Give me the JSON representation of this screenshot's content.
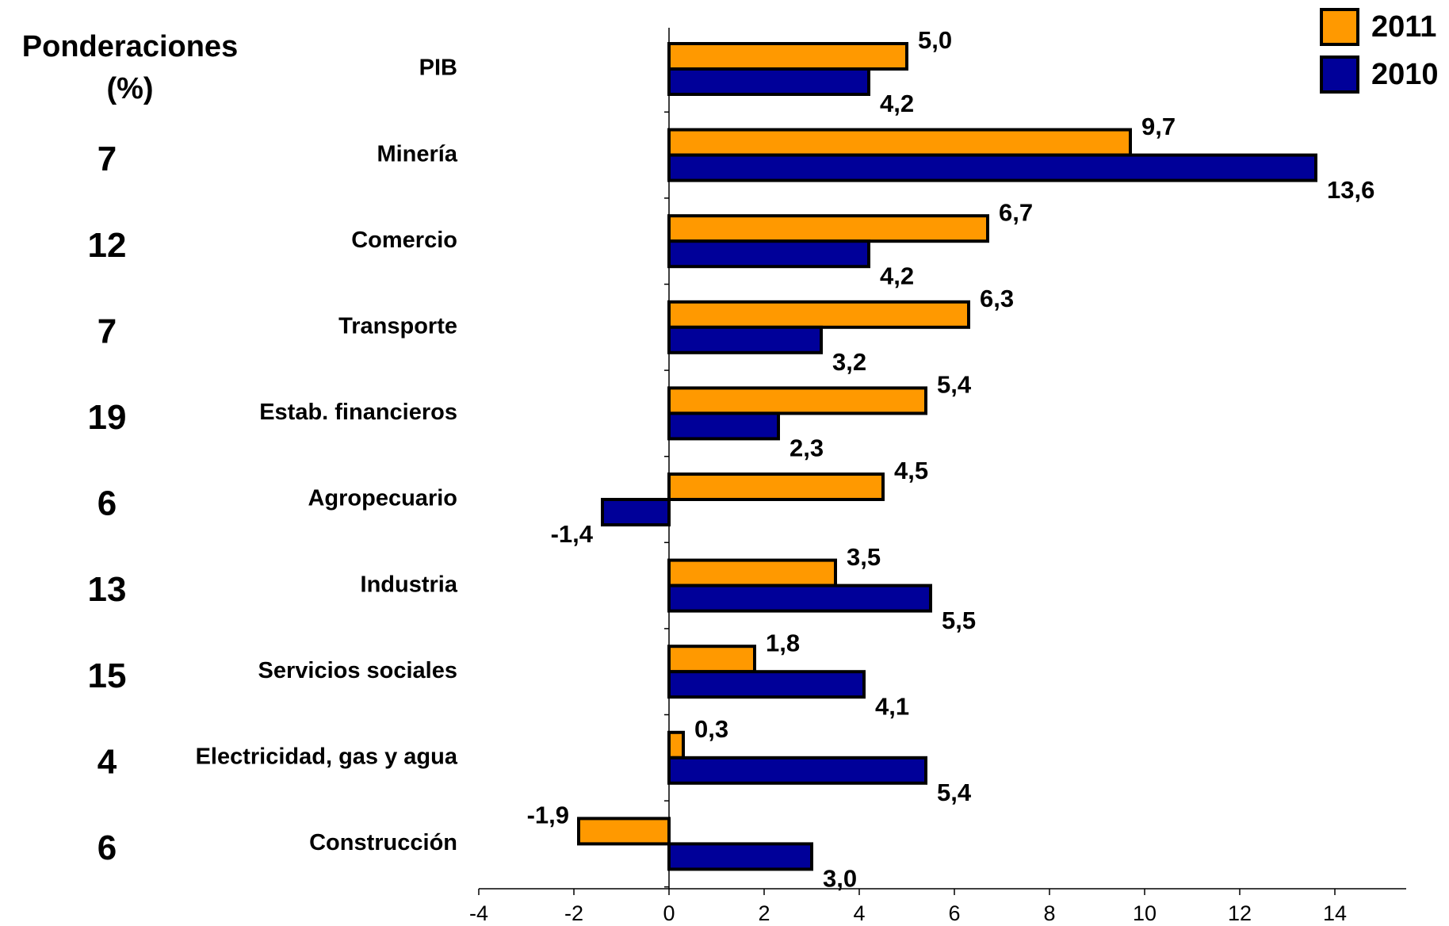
{
  "chart_data": {
    "type": "bar",
    "orientation": "horizontal",
    "weights_title": [
      "Ponderaciones",
      "(%)"
    ],
    "weights": [
      null,
      7,
      12,
      7,
      19,
      6,
      13,
      15,
      4,
      6
    ],
    "categories": [
      "PIB",
      "Minería",
      "Comercio",
      "Transporte",
      "Estab. financieros",
      "Agropecuario",
      "Industria",
      "Servicios sociales",
      "Electricidad, gas y agua",
      "Construcción"
    ],
    "series": [
      {
        "name": "2011",
        "color": "#ff9900",
        "values": [
          5.0,
          9.7,
          6.7,
          6.3,
          5.4,
          4.5,
          3.5,
          1.8,
          0.3,
          -1.9
        ],
        "value_labels": [
          "5,0",
          "9,7",
          "6,7",
          "6,3",
          "5,4",
          "4,5",
          "3,5",
          "1,8",
          "0,3",
          "-1,9"
        ]
      },
      {
        "name": "2010",
        "color": "#000099",
        "values": [
          4.2,
          13.6,
          4.2,
          3.2,
          2.3,
          -1.4,
          5.5,
          4.1,
          5.4,
          3.0
        ],
        "value_labels": [
          "4,2",
          "13,6",
          "4,2",
          "3,2",
          "2,3",
          "-1,4",
          "5,5",
          "4,1",
          "5,4",
          "3,0"
        ]
      }
    ],
    "xlim": [
      -4,
      15.5
    ],
    "xticks": [
      -4,
      -2,
      0,
      2,
      4,
      6,
      8,
      10,
      12,
      14
    ],
    "legend": "top-right"
  }
}
